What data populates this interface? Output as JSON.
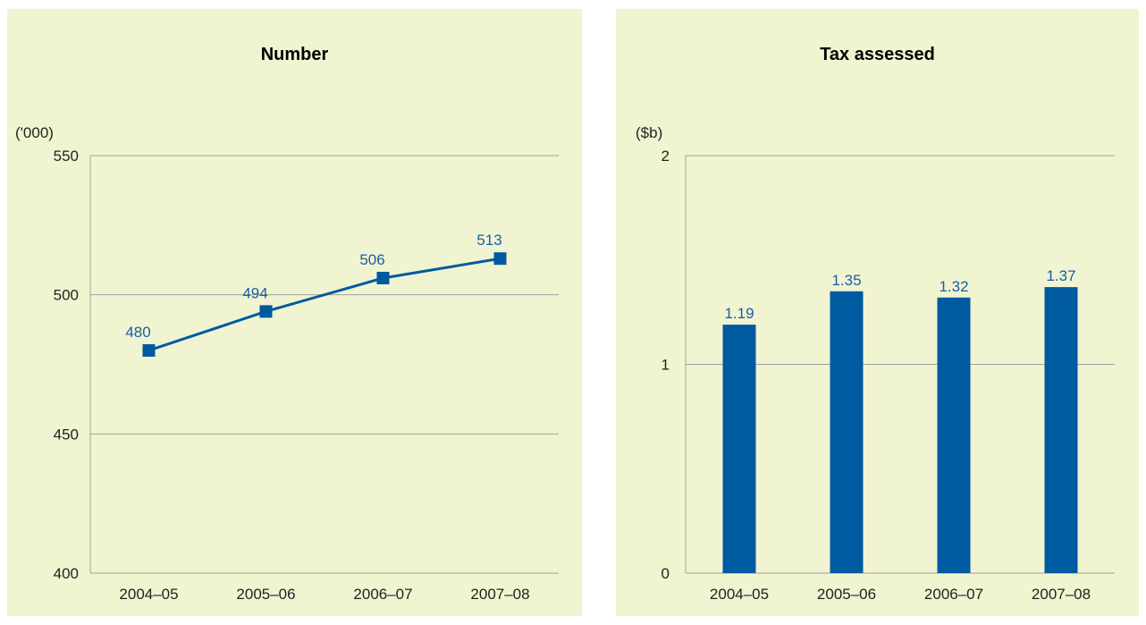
{
  "chart_data": [
    {
      "type": "line",
      "title": "Number",
      "unit_label": "('000)",
      "categories": [
        "2004–05",
        "2005–06",
        "2006–07",
        "2007–08"
      ],
      "values": [
        480,
        494,
        506,
        513
      ],
      "ylim": [
        400,
        550
      ],
      "yticks": [
        400,
        450,
        500,
        550
      ],
      "grid": true,
      "color": "#005aa0",
      "grid_color": "#a0a0a0",
      "background": "#f0f4d0"
    },
    {
      "type": "bar",
      "title": "Tax assessed",
      "unit_label": "($b)",
      "categories": [
        "2004–05",
        "2005–06",
        "2006–07",
        "2007–08"
      ],
      "values": [
        1.19,
        1.35,
        1.32,
        1.37
      ],
      "ylim": [
        0,
        2
      ],
      "yticks": [
        0,
        1,
        2
      ],
      "grid": true,
      "color": "#005aa0",
      "grid_color": "#a0a0a0",
      "background": "#f0f4d0"
    }
  ]
}
